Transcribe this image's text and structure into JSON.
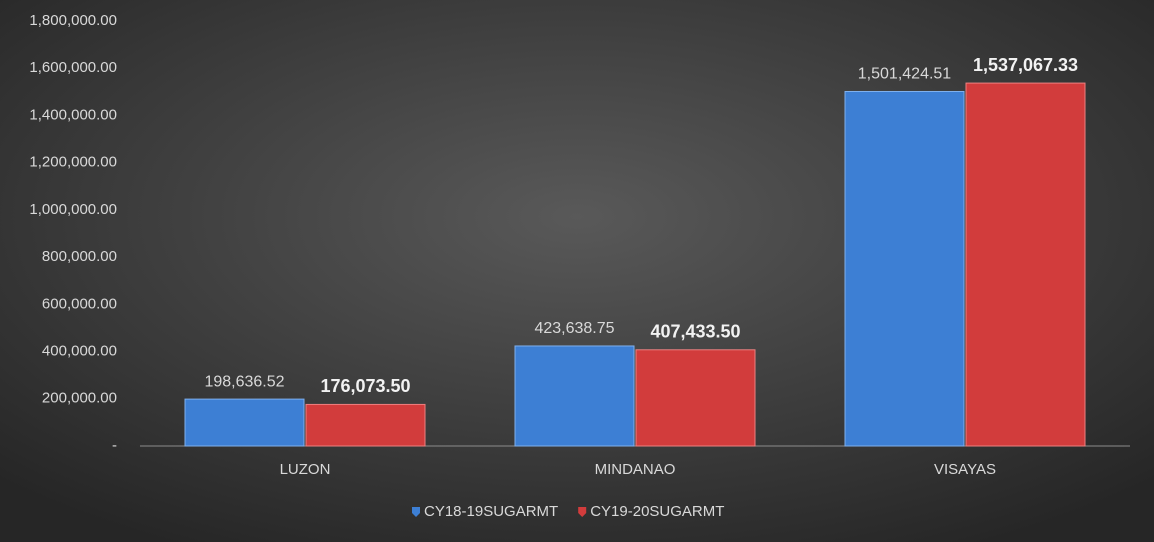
{
  "chart_data": {
    "type": "bar",
    "categories": [
      "LUZON",
      "MINDANAO",
      "VISAYAS"
    ],
    "series": [
      {
        "name": "CY18-19SUGARMT",
        "color": "#3d7fd4",
        "values": [
          198636.52,
          423638.75,
          1501424.51
        ],
        "value_labels": [
          "198,636.52",
          "423,638.75",
          "1,501,424.51"
        ]
      },
      {
        "name": "CY19-20SUGARMT",
        "color": "#d23c3c",
        "values": [
          176073.5,
          407433.5,
          1537067.33
        ],
        "value_labels": [
          "176,073.50",
          "407,433.50",
          "1,537,067.33"
        ]
      }
    ],
    "ylim": [
      0,
      1800000
    ],
    "yticks": [
      {
        "value": 0,
        "label": "-"
      },
      {
        "value": 200000,
        "label": "200,000.00"
      },
      {
        "value": 400000,
        "label": "400,000.00"
      },
      {
        "value": 600000,
        "label": "600,000.00"
      },
      {
        "value": 800000,
        "label": "800,000.00"
      },
      {
        "value": 1000000,
        "label": "1,000,000.00"
      },
      {
        "value": 1200000,
        "label": "1,200,000.00"
      },
      {
        "value": 1400000,
        "label": "1,400,000.00"
      },
      {
        "value": 1600000,
        "label": "1,600,000.00"
      },
      {
        "value": 1800000,
        "label": "1,800,000.00"
      }
    ],
    "grid": false,
    "legend": "bottom"
  }
}
